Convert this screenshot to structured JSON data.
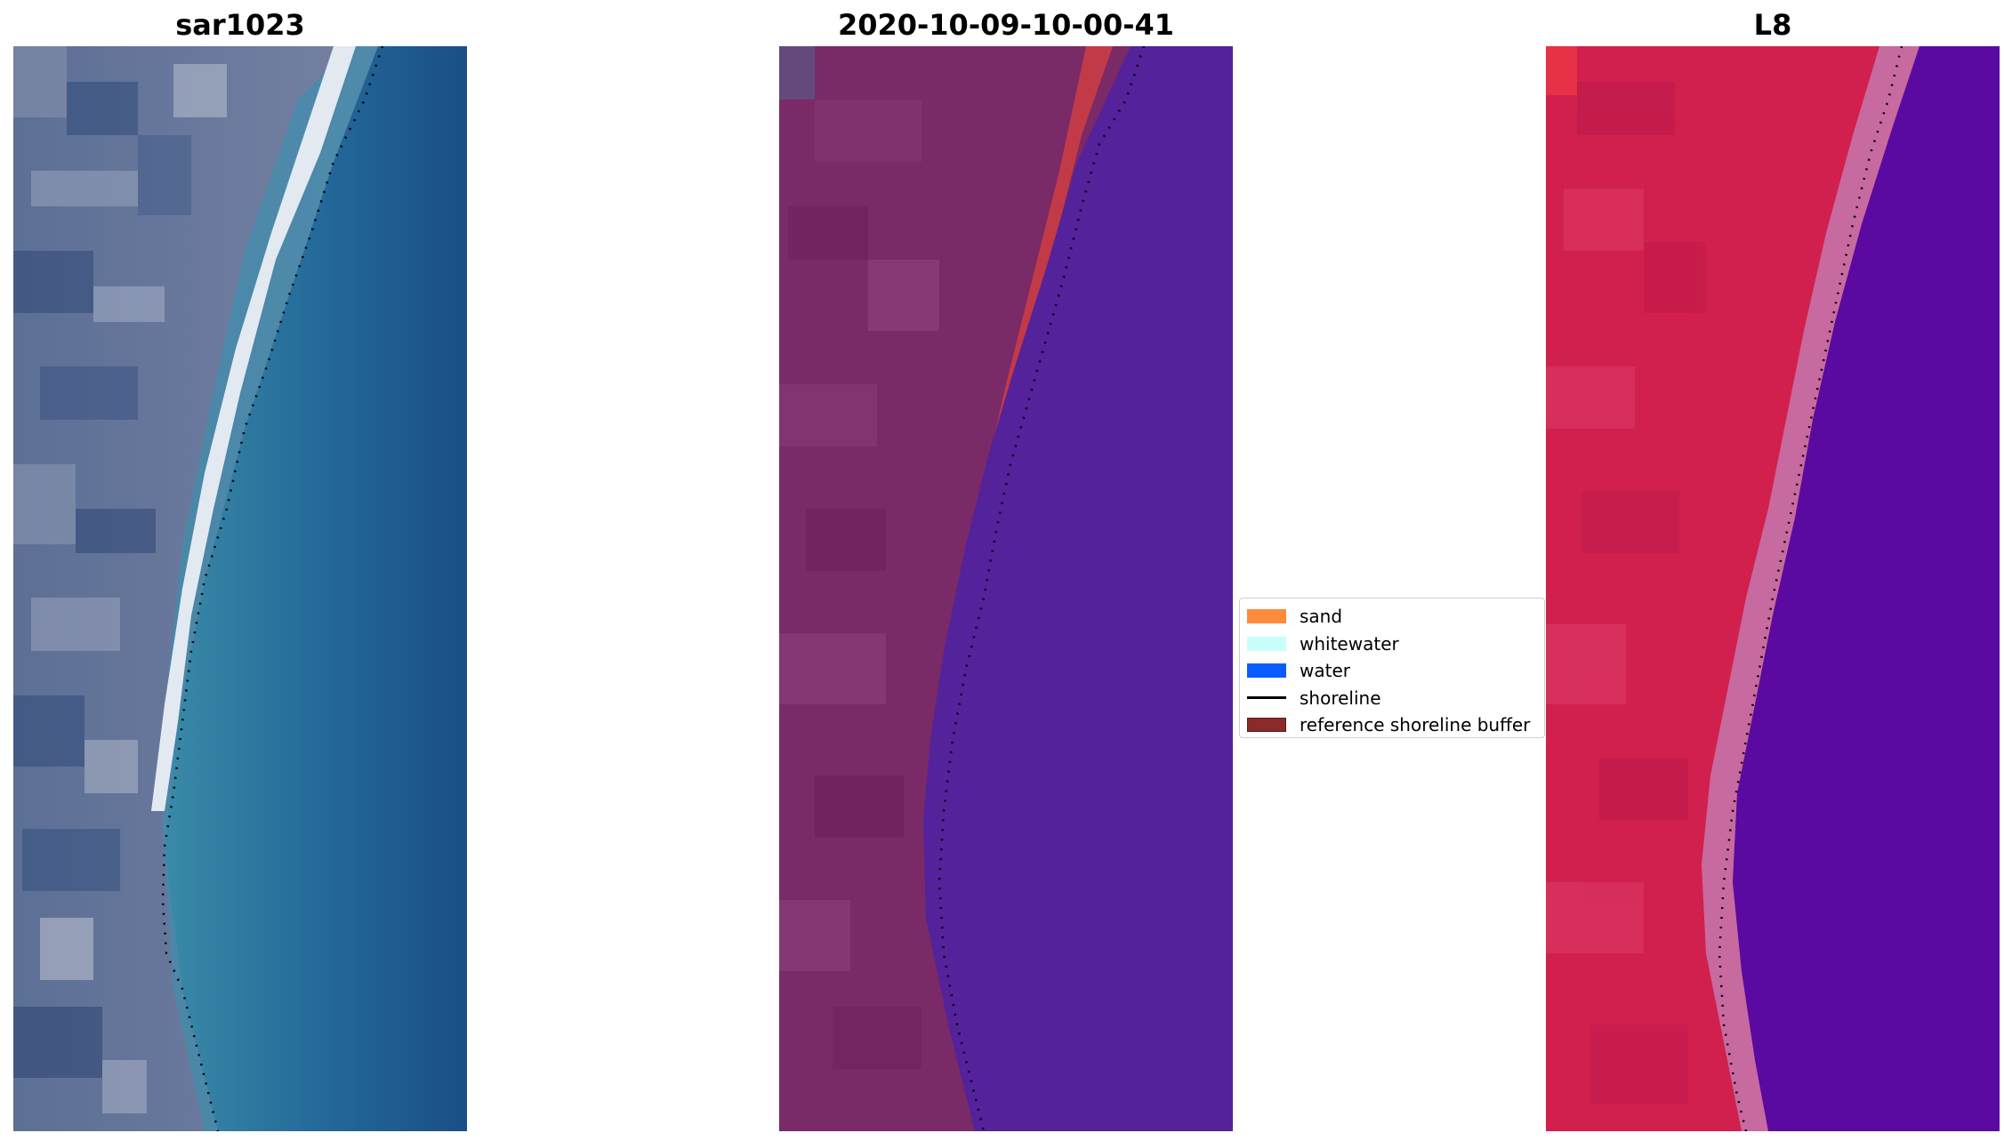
{
  "panels": [
    {
      "title": "sar1023"
    },
    {
      "title": "2020-10-09-10-00-41"
    },
    {
      "title": "L8"
    }
  ],
  "legend": {
    "items": [
      {
        "label": "sand",
        "kind": "patch",
        "color": "#ff8a3d"
      },
      {
        "label": "whitewater",
        "kind": "patch",
        "color": "#c8fff8"
      },
      {
        "label": "water",
        "kind": "patch",
        "color": "#0a5cff"
      },
      {
        "label": "shoreline",
        "kind": "line",
        "color": "#000000"
      },
      {
        "label": "reference shoreline buffer",
        "kind": "patch",
        "color": "#8b2a2a"
      }
    ]
  },
  "colors": {
    "rgb_land": "#6a7a99",
    "rgb_water": "#1f5a8f",
    "rgb_beach": "#e6ecf2",
    "class_land": "#7a2a66",
    "class_water": "#54229a",
    "class_sand_buffer": "#c43a4a",
    "false_color_land": "#d1204e",
    "false_color_water": "#5a0aa0",
    "false_color_beach": "#c76aa0"
  }
}
